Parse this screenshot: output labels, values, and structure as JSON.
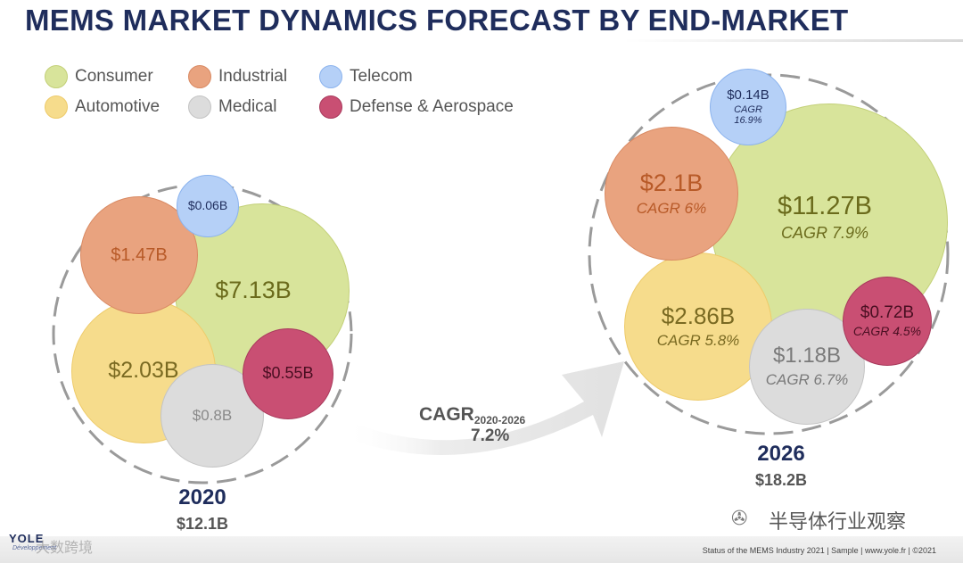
{
  "title": "MEMS MARKET DYNAMICS FORECAST BY END-MARKET",
  "legend": [
    {
      "name": "Consumer",
      "color": "#d8e49b",
      "border": "#c3d078"
    },
    {
      "name": "Industrial",
      "color": "#e9a37f",
      "border": "#d98a63"
    },
    {
      "name": "Telecom",
      "color": "#b5d0f7",
      "border": "#8bb3ee"
    },
    {
      "name": "Automotive",
      "color": "#f6dc8c",
      "border": "#eecb6a"
    },
    {
      "name": "Medical",
      "color": "#dcdcdc",
      "border": "#c4c4c4"
    },
    {
      "name": "Defense & Aerospace",
      "color": "#c94f73",
      "border": "#a83a5c"
    }
  ],
  "chart_data": {
    "type": "bubble",
    "title": "MEMS MARKET DYNAMICS FORECAST BY END-MARKET",
    "unit": "USD billion",
    "categories": [
      "Consumer",
      "Industrial",
      "Telecom",
      "Automotive",
      "Medical",
      "Defense & Aerospace"
    ],
    "years": [
      {
        "year": "2020",
        "total_label": "$12.1B",
        "total": 12.1,
        "values": [
          7.13,
          1.47,
          0.06,
          2.03,
          0.8,
          0.55
        ],
        "labels": [
          "$7.13B",
          "$1.47B",
          "$0.06B",
          "$2.03B",
          "$0.8B",
          "$0.55B"
        ]
      },
      {
        "year": "2026",
        "total_label": "$18.2B",
        "total": 18.2,
        "values": [
          11.27,
          2.1,
          0.14,
          2.86,
          1.18,
          0.72
        ],
        "labels": [
          "$11.27B",
          "$2.1B",
          "$0.14B",
          "$2.86B",
          "$1.18B",
          "$0.72B"
        ],
        "cagr": [
          "CAGR 7.9%",
          "CAGR 6%",
          "CAGR 16.9%",
          "CAGR 5.8%",
          "CAGR 6.7%",
          "CAGR 4.5%"
        ]
      }
    ],
    "overall_cagr": {
      "label": "CAGR",
      "period": "2020-2026",
      "value": "7.2%"
    }
  },
  "footer": {
    "source": "Status of the MEMS Industry 2021 | Sample | www.yole.fr | ©2021",
    "logo": "YOLE",
    "logo_sub": "Développement"
  },
  "watermarks": {
    "left": "大数跨境",
    "right": "半导体行业观察"
  }
}
